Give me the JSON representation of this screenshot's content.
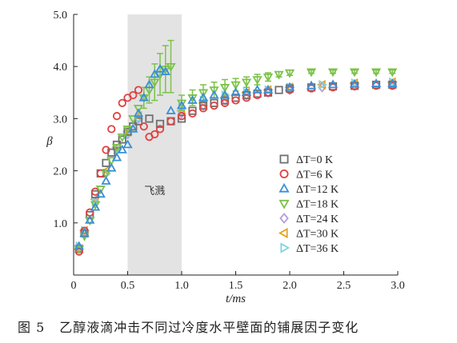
{
  "chart_data": {
    "type": "scatter",
    "xlabel": "t/ms",
    "ylabel": "β",
    "xlim": [
      0,
      3.0
    ],
    "ylim": [
      0,
      5.0
    ],
    "x_ticks": [
      "0",
      "0.5",
      "1.0",
      "1.5",
      "2.0",
      "2.5",
      "3.0"
    ],
    "y_ticks": [
      "1.0",
      "2.0",
      "3.0",
      "4.0",
      "5.0"
    ],
    "y_tick_values": [
      1,
      2,
      3,
      4,
      5
    ],
    "x_tick_values": [
      0,
      0.5,
      1.0,
      1.5,
      2.0,
      2.5,
      3.0
    ],
    "legend_position": "right-center",
    "shaded_region": {
      "x_start": 0.5,
      "x_end": 1.0,
      "label": "飞溅",
      "color": "#e3e3e3"
    },
    "series": [
      {
        "name": "ΔT=0 K",
        "marker": "square",
        "color": "#707070",
        "x": [
          0.05,
          0.1,
          0.15,
          0.2,
          0.25,
          0.3,
          0.35,
          0.4,
          0.45,
          0.5,
          0.55,
          0.6,
          0.7,
          0.8,
          0.9,
          1.0,
          1.1,
          1.2,
          1.3,
          1.4,
          1.5,
          1.6,
          1.7,
          1.8,
          1.9,
          2.0,
          2.2,
          2.4,
          2.6,
          2.8,
          2.95
        ],
        "y": [
          0.5,
          0.8,
          1.15,
          1.55,
          1.95,
          2.15,
          2.35,
          2.5,
          2.6,
          2.75,
          2.85,
          2.95,
          3.0,
          2.9,
          2.95,
          3.0,
          3.15,
          3.25,
          3.3,
          3.35,
          3.4,
          3.45,
          3.48,
          3.5,
          3.55,
          3.58,
          3.6,
          3.62,
          3.63,
          3.65,
          3.65
        ]
      },
      {
        "name": "ΔT=6 K",
        "marker": "circle",
        "color": "#e04040",
        "x": [
          0.05,
          0.1,
          0.15,
          0.2,
          0.25,
          0.3,
          0.35,
          0.4,
          0.45,
          0.5,
          0.55,
          0.6,
          0.65,
          0.7,
          0.75,
          0.8,
          0.9,
          1.0,
          1.1,
          1.2,
          1.3,
          1.4,
          1.5,
          1.6,
          1.7,
          1.8,
          2.0,
          2.2,
          2.4,
          2.6,
          2.8,
          2.95
        ],
        "y": [
          0.45,
          0.85,
          1.2,
          1.6,
          1.95,
          2.4,
          2.8,
          3.05,
          3.3,
          3.4,
          3.45,
          3.55,
          2.85,
          2.65,
          2.7,
          2.8,
          2.95,
          3.05,
          3.1,
          3.2,
          3.25,
          3.3,
          3.35,
          3.4,
          3.45,
          3.5,
          3.55,
          3.58,
          3.6,
          3.62,
          3.63,
          3.63
        ]
      },
      {
        "name": "ΔT=12 K",
        "marker": "triangle-up",
        "color": "#3a8fd8",
        "x": [
          0.05,
          0.1,
          0.15,
          0.2,
          0.25,
          0.3,
          0.35,
          0.4,
          0.45,
          0.5,
          0.55,
          0.6,
          0.65,
          0.7,
          0.75,
          0.8,
          0.85,
          0.9,
          1.0,
          1.1,
          1.2,
          1.3,
          1.4,
          1.5,
          1.6,
          1.7,
          1.8,
          2.0,
          2.2,
          2.4,
          2.6,
          2.8,
          2.95
        ],
        "y": [
          0.55,
          0.8,
          1.05,
          1.3,
          1.55,
          1.8,
          2.05,
          2.25,
          2.4,
          2.5,
          2.8,
          3.1,
          3.4,
          3.65,
          3.85,
          3.95,
          3.9,
          3.15,
          3.25,
          3.35,
          3.4,
          3.45,
          3.45,
          3.5,
          3.5,
          3.55,
          3.55,
          3.6,
          3.63,
          3.65,
          3.66,
          3.67,
          3.67
        ]
      },
      {
        "name": "ΔT=18 K",
        "marker": "triangle-down",
        "color": "#7cc24a",
        "x": [
          0.05,
          0.1,
          0.15,
          0.2,
          0.25,
          0.3,
          0.35,
          0.4,
          0.45,
          0.5,
          0.55,
          0.6,
          0.65,
          0.7,
          0.75,
          0.8,
          0.85,
          0.9,
          1.0,
          1.1,
          1.2,
          1.3,
          1.4,
          1.5,
          1.6,
          1.7,
          1.8,
          1.9,
          2.0,
          2.2,
          2.4,
          2.6,
          2.8,
          2.95
        ],
        "y": [
          0.5,
          0.75,
          1.05,
          1.35,
          1.65,
          1.95,
          2.2,
          2.45,
          2.65,
          2.8,
          3.0,
          3.2,
          3.4,
          3.55,
          3.7,
          3.85,
          3.95,
          4.0,
          3.3,
          3.4,
          3.5,
          3.55,
          3.6,
          3.65,
          3.7,
          3.75,
          3.8,
          3.85,
          3.88,
          3.9,
          3.9,
          3.9,
          3.9,
          3.9
        ],
        "error": [
          0,
          0,
          0,
          0,
          0,
          0,
          0,
          0,
          0,
          0,
          0,
          0,
          0.2,
          0.25,
          0.35,
          0.4,
          0.45,
          0.5,
          0.15,
          0.15,
          0.15,
          0.15,
          0.15,
          0.12,
          0.1,
          0.1,
          0.08,
          0.05,
          0.05,
          0.03,
          0.03,
          0.03,
          0.03,
          0.03
        ]
      },
      {
        "name": "ΔT=24 K",
        "marker": "diamond",
        "color": "#b39ddb",
        "x": [
          0.05,
          0.1,
          0.2,
          0.3,
          0.4,
          0.5,
          0.6,
          1.0,
          1.2,
          1.4,
          1.6,
          1.8,
          2.0,
          2.3,
          2.6,
          2.95
        ],
        "y": [
          0.5,
          0.8,
          1.4,
          1.95,
          2.4,
          2.7,
          3.0,
          3.1,
          3.25,
          3.35,
          3.45,
          3.5,
          3.55,
          3.6,
          3.63,
          3.65
        ]
      },
      {
        "name": "ΔT=30 K",
        "marker": "triangle-left",
        "color": "#e8a020",
        "x": [
          0.05,
          0.1,
          0.2,
          0.3,
          0.4,
          0.5,
          0.6,
          1.0,
          1.2,
          1.4,
          1.6,
          1.8,
          2.0,
          2.3,
          2.6,
          2.95
        ],
        "y": [
          0.5,
          0.85,
          1.45,
          2.0,
          2.45,
          2.75,
          3.05,
          3.15,
          3.3,
          3.4,
          3.5,
          3.55,
          3.6,
          3.65,
          3.68,
          3.7
        ]
      },
      {
        "name": "ΔT=36 K",
        "marker": "triangle-right",
        "color": "#7fd3e0",
        "x": [
          0.05,
          0.1,
          0.2,
          0.3,
          0.4,
          0.5,
          0.6,
          1.0,
          1.2,
          1.4,
          1.6,
          1.8,
          2.0,
          2.3,
          2.6,
          2.95
        ],
        "y": [
          0.55,
          0.85,
          1.4,
          1.95,
          2.4,
          2.7,
          3.0,
          3.2,
          3.35,
          3.45,
          3.5,
          3.55,
          3.6,
          3.65,
          3.68,
          3.7
        ]
      }
    ]
  },
  "caption": {
    "number": "图 5",
    "text": "乙醇液滴冲击不同过冷度水平壁面的铺展因子变化"
  }
}
